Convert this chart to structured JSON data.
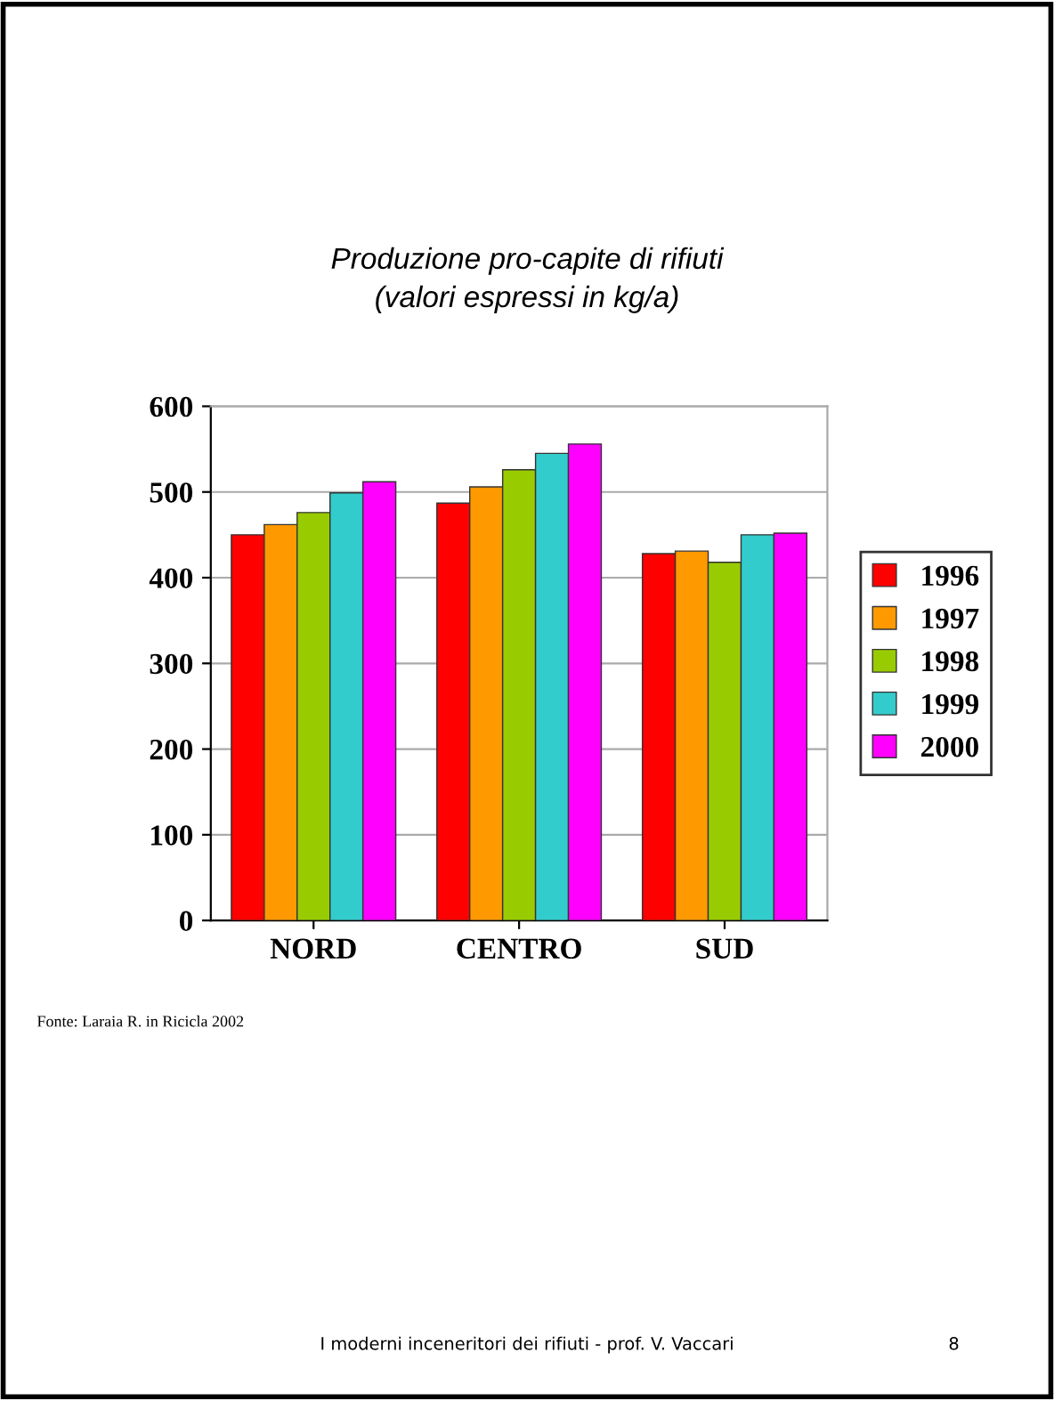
{
  "chart_data": {
    "type": "bar",
    "title": "Produzione pro-capite di rifiuti\n(valori espressi in kg/a)",
    "categories": [
      "NORD",
      "CENTRO",
      "SUD"
    ],
    "series": [
      {
        "name": "1996",
        "color": "#ff0000",
        "values": [
          450,
          487,
          428
        ]
      },
      {
        "name": "1997",
        "color": "#ff9900",
        "values": [
          462,
          506,
          431
        ]
      },
      {
        "name": "1998",
        "color": "#99cc00",
        "values": [
          476,
          526,
          418
        ]
      },
      {
        "name": "1999",
        "color": "#33cccc",
        "values": [
          499,
          545,
          450
        ]
      },
      {
        "name": "2000",
        "color": "#ff00ff",
        "values": [
          512,
          556,
          452
        ]
      }
    ],
    "ylim": [
      0,
      600
    ],
    "yticks": [
      0,
      100,
      200,
      300,
      400,
      500,
      600
    ],
    "grid": "y",
    "legend": "right",
    "annotations": [
      "Fonte: Laraia R. in Ricicla 2002",
      "I moderni inceneritori dei rifiuti - prof. V. Vaccari",
      "8"
    ]
  }
}
